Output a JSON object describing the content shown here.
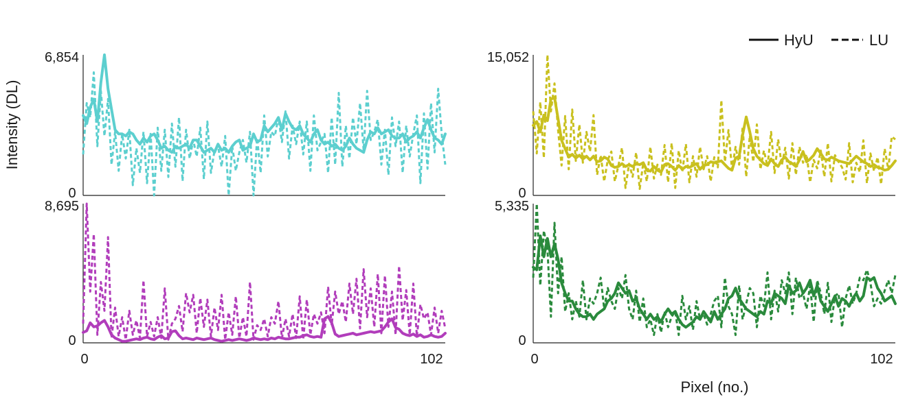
{
  "figure": {
    "ylabel": "Intensity (DL)",
    "xlabel": "Pixel (no.)",
    "legend": [
      {
        "label": "HyU",
        "style": "solid"
      },
      {
        "label": "LU",
        "style": "dashed"
      }
    ],
    "legend_position": "top-right"
  },
  "chart_data": [
    {
      "type": "line",
      "xlim": [
        0,
        102
      ],
      "ylim": [
        0,
        6854
      ],
      "yticks": [
        "6,854",
        "0"
      ],
      "xticks": [],
      "color": "#5ccfcf",
      "series": [
        {
          "name": "HyU",
          "style": "solid",
          "values": [
            3900,
            3500,
            4300,
            4700,
            3600,
            5500,
            6854,
            5200,
            4200,
            3200,
            3000,
            3000,
            2900,
            3100,
            3000,
            2700,
            2500,
            2800,
            2600,
            2900,
            3000,
            2700,
            2300,
            2400,
            2200,
            2100,
            2400,
            2300,
            2400,
            2500,
            2300,
            2700,
            2700,
            2400,
            2100,
            2200,
            2300,
            2100,
            2500,
            2200,
            2300,
            2100,
            2400,
            2600,
            2700,
            2200,
            2300,
            2400,
            3000,
            2600,
            2700,
            3400,
            3100,
            3300,
            3500,
            3800,
            3200,
            4000,
            3600,
            3300,
            3200,
            3400,
            3000,
            2800,
            2600,
            3000,
            3200,
            2700,
            2500,
            2600,
            2400,
            2500,
            2300,
            2200,
            2400,
            2800,
            2500,
            2300,
            2200,
            2100,
            2700,
            3100,
            3000,
            3300,
            3000,
            3100,
            3200,
            2900,
            2800,
            2800,
            3000,
            2600,
            2800,
            2900,
            3100,
            2800,
            3300,
            3700,
            3200,
            2800,
            2700,
            2500,
            3000
          ]
        },
        {
          "name": "LU",
          "style": "dashed",
          "values": [
            2000,
            4500,
            3800,
            6000,
            2400,
            5100,
            2900,
            4700,
            1500,
            3100,
            1200,
            3000,
            1800,
            3200,
            500,
            2300,
            1100,
            3100,
            600,
            3000,
            0,
            3300,
            1200,
            3200,
            900,
            3500,
            1400,
            3800,
            700,
            3200,
            1800,
            2700,
            1900,
            3300,
            800,
            3600,
            1100,
            2200,
            2400,
            1400,
            2900,
            0,
            2400,
            1200,
            2100,
            2700,
            1600,
            3100,
            0,
            2800,
            1100,
            3900,
            1900,
            3100,
            2900,
            3800,
            2600,
            4100,
            1800,
            3400,
            2500,
            3600,
            2000,
            3600,
            1200,
            3900,
            2200,
            2600,
            3000,
            1100,
            3800,
            1500,
            5000,
            1400,
            3400,
            1800,
            3800,
            2500,
            4500,
            2200,
            5100,
            2700,
            3100,
            3700,
            1500,
            3200,
            1000,
            3800,
            2400,
            3600,
            1100,
            3400,
            1900,
            3000,
            3900,
            600,
            4000,
            1300,
            4500,
            2100,
            5200,
            3000,
            1500
          ]
        }
      ]
    },
    {
      "type": "line",
      "xlim": [
        0,
        102
      ],
      "ylim": [
        0,
        15052
      ],
      "yticks": [
        "15,052",
        "0"
      ],
      "xticks": [],
      "color": "#c9c01e",
      "series": [
        {
          "name": "HyU",
          "style": "solid",
          "values": [
            7500,
            7900,
            6800,
            8600,
            8000,
            10300,
            10500,
            8200,
            5900,
            5000,
            4100,
            4400,
            4000,
            4300,
            3900,
            4200,
            3800,
            4200,
            3600,
            3700,
            4100,
            3900,
            3200,
            3000,
            3100,
            3400,
            3100,
            3300,
            3100,
            3400,
            3300,
            3500,
            2700,
            2600,
            3100,
            2700,
            2500,
            3300,
            3400,
            3100,
            2700,
            3200,
            2800,
            3100,
            3000,
            3200,
            3400,
            2800,
            3200,
            3300,
            3600,
            3500,
            3600,
            3700,
            3300,
            2900,
            2700,
            4000,
            4200,
            6500,
            8400,
            6800,
            5000,
            4200,
            3800,
            3400,
            3200,
            3900,
            3400,
            3100,
            3800,
            4100,
            3600,
            3400,
            3100,
            3800,
            4700,
            3600,
            3900,
            4300,
            5000,
            4500,
            3900,
            3800,
            4100,
            3900,
            3700,
            3600,
            3500,
            3400,
            3800,
            4200,
            3900,
            3600,
            3400,
            3100,
            3300,
            3000,
            2900,
            2700,
            2800,
            3200,
            3700
          ]
        },
        {
          "name": "LU",
          "style": "dashed",
          "values": [
            9000,
            4500,
            10000,
            4000,
            15052,
            9000,
            12000,
            7000,
            3200,
            8500,
            2800,
            9200,
            3700,
            7600,
            3500,
            6800,
            4700,
            8600,
            2200,
            4300,
            1500,
            3800,
            4700,
            1500,
            3200,
            5100,
            800,
            3400,
            2000,
            4600,
            700,
            3500,
            1500,
            5200,
            1800,
            3300,
            2200,
            5400,
            1400,
            5600,
            800,
            4800,
            2500,
            5500,
            1400,
            4200,
            2000,
            5200,
            2800,
            4200,
            1500,
            4100,
            3000,
            10200,
            3600,
            7000,
            2800,
            5200,
            3300,
            7300,
            2000,
            6400,
            3600,
            7600,
            2800,
            4800,
            3100,
            6800,
            2400,
            6000,
            3200,
            5100,
            1800,
            5600,
            2200,
            5200,
            3500,
            4400,
            1400,
            3800,
            2900,
            4800,
            2000,
            5600,
            1500,
            4300,
            3600,
            3000,
            1700,
            5600,
            1400,
            3500,
            2500,
            5900,
            1300,
            4500,
            2600,
            4100,
            1200,
            5000,
            2800,
            6300,
            6000
          ]
        }
      ]
    },
    {
      "type": "line",
      "xlim": [
        0,
        102
      ],
      "ylim": [
        0,
        8695
      ],
      "yticks": [
        "8,695",
        "0"
      ],
      "xticks": [
        "0",
        "102"
      ],
      "color": "#b13dbb",
      "series": [
        {
          "name": "HyU",
          "style": "solid",
          "values": [
            650,
            750,
            1250,
            1000,
            1050,
            1250,
            1400,
            1000,
            500,
            300,
            200,
            100,
            100,
            150,
            200,
            250,
            200,
            300,
            350,
            250,
            200,
            350,
            450,
            250,
            300,
            700,
            750,
            450,
            250,
            300,
            250,
            200,
            300,
            250,
            200,
            250,
            300,
            200,
            150,
            100,
            150,
            200,
            150,
            200,
            250,
            200,
            150,
            200,
            300,
            250,
            200,
            250,
            200,
            300,
            250,
            350,
            300,
            250,
            250,
            300,
            350,
            350,
            450,
            500,
            400,
            350,
            400,
            350,
            1500,
            1650,
            1250,
            550,
            400,
            450,
            500,
            550,
            600,
            500,
            550,
            600,
            650,
            700,
            650,
            700,
            750,
            1000,
            1300,
            1500,
            950,
            850,
            600,
            500,
            450,
            550,
            400,
            500,
            350,
            400,
            500,
            400,
            350,
            400,
            600
          ]
        },
        {
          "name": "LU",
          "style": "dashed",
          "values": [
            1200,
            8695,
            3200,
            6800,
            500,
            3800,
            2000,
            6600,
            300,
            2200,
            400,
            1600,
            200,
            2000,
            500,
            1400,
            300,
            3900,
            400,
            1300,
            400,
            1600,
            300,
            3400,
            200,
            1200,
            1500,
            2300,
            700,
            3100,
            1900,
            3000,
            600,
            2800,
            1000,
            2700,
            400,
            2200,
            800,
            3000,
            200,
            1900,
            500,
            2900,
            300,
            1600,
            400,
            3800,
            200,
            1100,
            800,
            1500,
            400,
            1600,
            1200,
            2600,
            300,
            1500,
            400,
            1800,
            300,
            2900,
            200,
            2700,
            500,
            1800,
            1200,
            1900,
            600,
            3500,
            1100,
            3200,
            1800,
            2600,
            1300,
            3700,
            1800,
            4000,
            900,
            4600,
            1600,
            3400,
            1000,
            4300,
            600,
            4200,
            1000,
            3200,
            500,
            4800,
            1400,
            3300,
            500,
            3700,
            400,
            2400,
            1500,
            1900,
            500,
            2200,
            600,
            2000,
            900
          ]
        }
      ]
    },
    {
      "type": "line",
      "xlim": [
        0,
        102
      ],
      "ylim": [
        0,
        5335
      ],
      "yticks": [
        "5,335",
        "0"
      ],
      "xticks": [
        "0",
        "102"
      ],
      "color": "#2a8a3c",
      "series": [
        {
          "name": "HyU",
          "style": "solid",
          "values": [
            2900,
            2800,
            4100,
            3300,
            4000,
            3300,
            3800,
            3200,
            2300,
            1900,
            1600,
            1600,
            1300,
            1100,
            1000,
            1000,
            1100,
            900,
            1100,
            1200,
            1300,
            1600,
            1700,
            1900,
            2300,
            2100,
            1900,
            2000,
            1600,
            1700,
            1300,
            1100,
            900,
            1100,
            900,
            1000,
            800,
            1100,
            1300,
            1100,
            1200,
            900,
            700,
            600,
            700,
            800,
            1000,
            900,
            1200,
            1000,
            800,
            1200,
            900,
            1100,
            1300,
            1700,
            1800,
            2100,
            1700,
            1500,
            1300,
            1200,
            1100,
            1000,
            1200,
            1100,
            1600,
            1500,
            1900,
            1800,
            1700,
            1500,
            2200,
            1900,
            2000,
            2300,
            1900,
            2100,
            2400,
            1800,
            2200,
            1600,
            1400,
            1200,
            1500,
            1800,
            1400,
            1700,
            1600,
            1400,
            1700,
            1900,
            1600,
            1800,
            2500,
            2400,
            2500,
            2100,
            1900,
            1600,
            1700,
            1800,
            1500
          ]
        },
        {
          "name": "LU",
          "style": "dashed",
          "values": [
            2500,
            5335,
            2200,
            4300,
            3600,
            1000,
            4600,
            1900,
            3300,
            1200,
            1900,
            900,
            1600,
            1000,
            2400,
            900,
            1700,
            1500,
            1900,
            2500,
            1300,
            2100,
            1600,
            1300,
            2100,
            1700,
            2600,
            1300,
            900,
            2000,
            800,
            1700,
            600,
            900,
            300,
            1100,
            400,
            1200,
            600,
            1000,
            1200,
            300,
            1800,
            900,
            1400,
            500,
            1600,
            900,
            1100,
            700,
            1100,
            1600,
            1800,
            600,
            2500,
            1400,
            1100,
            300,
            2200,
            900,
            1500,
            2100,
            1900,
            600,
            1800,
            1400,
            2700,
            900,
            2000,
            1200,
            2400,
            1900,
            2700,
            1100,
            2500,
            1700,
            1900,
            1300,
            2200,
            800,
            2400,
            1900,
            1100,
            2300,
            800,
            1800,
            1900,
            600,
            1700,
            2200,
            1500,
            1900,
            2500,
            2400,
            2800,
            2300,
            1400,
            1700,
            1500,
            2000,
            2400,
            1900,
            2600
          ]
        }
      ]
    }
  ]
}
